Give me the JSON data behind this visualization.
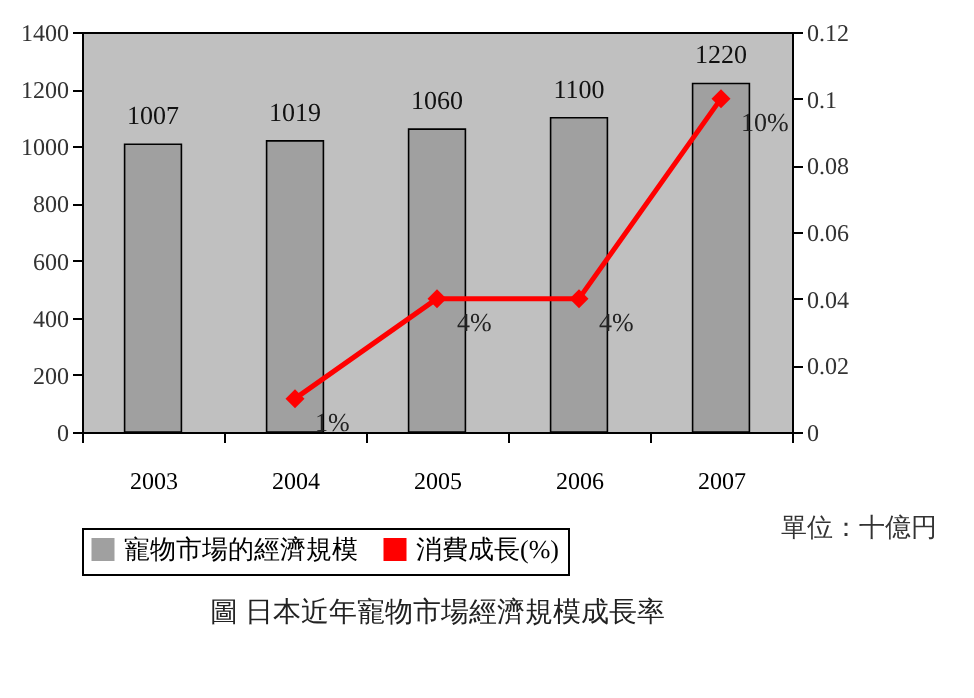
{
  "chart_data": {
    "type": "bar",
    "title": "圖 日本近年寵物市場經濟規模成長率",
    "annotations": [
      "單位：十億円"
    ],
    "categories": [
      "2003",
      "2004",
      "2005",
      "2006",
      "2007"
    ],
    "series": [
      {
        "name": "寵物市場的經濟規模",
        "type": "bar",
        "color": "#a0a0a0",
        "values": [
          1007,
          1019,
          1060,
          1100,
          1220
        ],
        "value_labels": [
          "1007",
          "1019",
          "1060",
          "1100",
          "1220"
        ]
      },
      {
        "name": "消費成長(%)",
        "type": "line",
        "axis": "y2",
        "color": "#ff0000",
        "values": [
          null,
          0.01,
          0.04,
          0.04,
          0.1
        ],
        "value_labels": [
          null,
          "1%",
          "4%",
          "4%",
          "10%"
        ]
      }
    ],
    "ylim": [
      0,
      1400
    ],
    "yticks": [
      0,
      200,
      400,
      600,
      800,
      1000,
      1200,
      1400
    ],
    "y2lim": [
      0,
      0.12
    ],
    "y2ticks": [
      0,
      0.02,
      0.04,
      0.06,
      0.08,
      0.1,
      0.12
    ],
    "legend": "bottom",
    "marker": "diamond",
    "line_style": "solid",
    "grid": false
  }
}
